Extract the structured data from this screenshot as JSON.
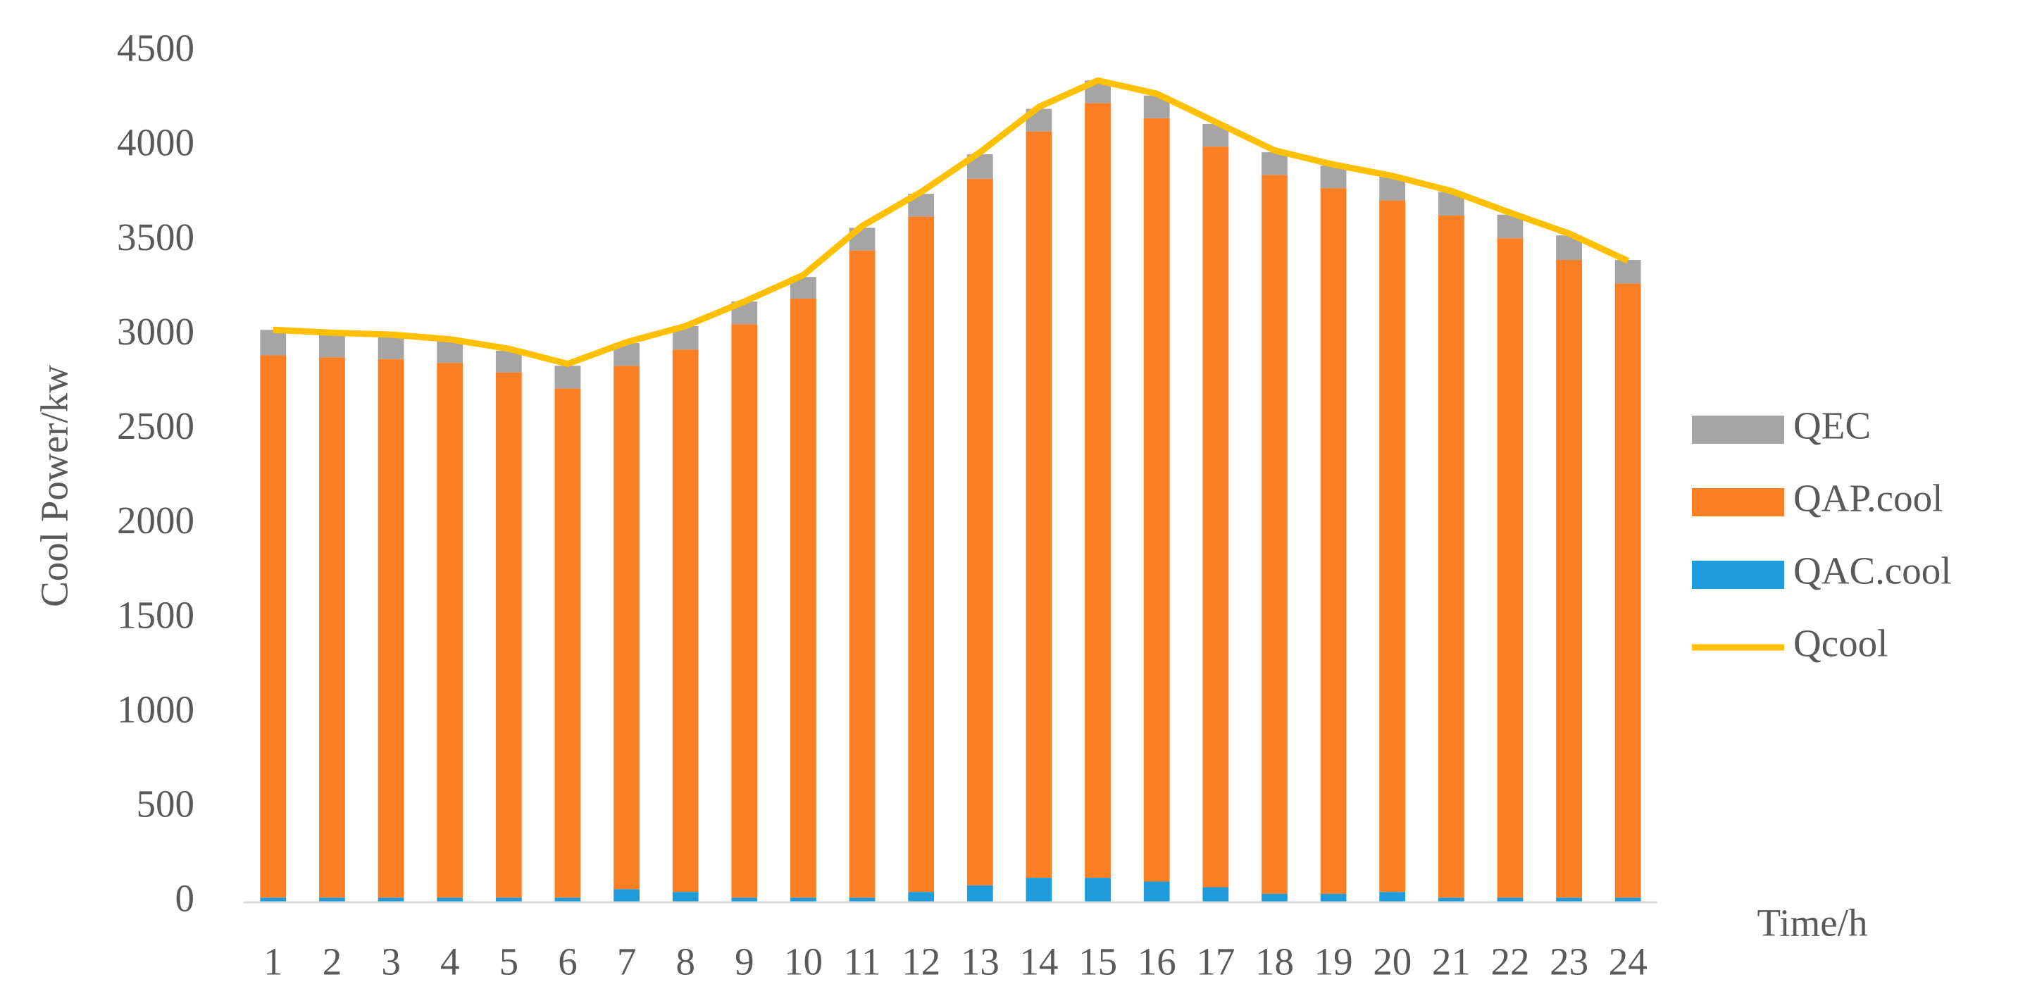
{
  "chart_data": {
    "type": "bar",
    "stacked": true,
    "ylabel": "Cool Power/kw",
    "xlabel": "Time/h",
    "categories": [
      "1",
      "2",
      "3",
      "4",
      "5",
      "6",
      "7",
      "8",
      "9",
      "10",
      "11",
      "12",
      "13",
      "14",
      "15",
      "16",
      "17",
      "18",
      "19",
      "20",
      "21",
      "22",
      "23",
      "24"
    ],
    "ylim": [
      0,
      4500
    ],
    "yticks": [
      0,
      500,
      1000,
      1500,
      2000,
      2500,
      3000,
      3500,
      4000,
      4500
    ],
    "grid": false,
    "legend": "right",
    "series": [
      {
        "name": "QAC.cool",
        "type": "bar",
        "color": "#1f9cdb",
        "values": [
          25,
          25,
          25,
          25,
          25,
          25,
          70,
          55,
          25,
          25,
          25,
          55,
          90,
          130,
          130,
          110,
          80,
          45,
          45,
          55,
          25,
          25,
          25,
          25
        ]
      },
      {
        "name": "QAP.cool",
        "type": "bar",
        "color": "#fd7f23",
        "values": [
          2870,
          2860,
          2850,
          2830,
          2780,
          2695,
          2770,
          2870,
          3035,
          3170,
          3425,
          3575,
          3740,
          3950,
          4100,
          4040,
          3920,
          3805,
          3735,
          3660,
          3610,
          3490,
          3375,
          3250
        ]
      },
      {
        "name": "QEC",
        "type": "bar",
        "color": "#a5a5a5",
        "values": [
          135,
          125,
          125,
          120,
          115,
          120,
          120,
          125,
          120,
          115,
          120,
          120,
          130,
          120,
          120,
          120,
          120,
          120,
          120,
          125,
          125,
          125,
          130,
          125
        ]
      },
      {
        "name": "Qcool",
        "type": "line",
        "color": "#ffc000",
        "values": [
          3030,
          3015,
          3005,
          2980,
          2930,
          2850,
          2965,
          3050,
          3180,
          3320,
          3580,
          3760,
          3970,
          4210,
          4350,
          4280,
          4130,
          3980,
          3905,
          3845,
          3765,
          3650,
          3540,
          3395
        ]
      }
    ]
  }
}
